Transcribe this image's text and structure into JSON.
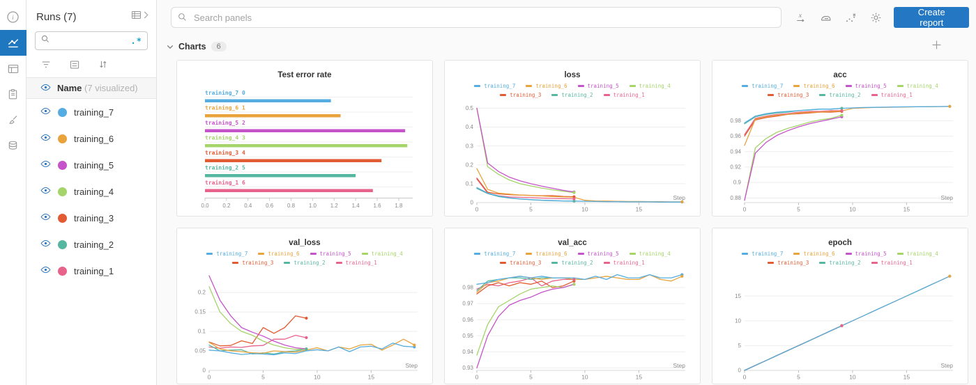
{
  "colors": {
    "training_7": "#54ace0",
    "training_6": "#e8a33d",
    "training_5": "#c553c9",
    "training_4": "#a5d46a",
    "training_3": "#e25b33",
    "training_2": "#55b7a0",
    "training_1": "#e8638c"
  },
  "accent": {
    "active_rail": "#1f77c0",
    "eye": "#2e78c2",
    "button": "#2477c2",
    "regex": "#17a6c6"
  },
  "rail": {
    "items": [
      "info",
      "charts",
      "table",
      "logs",
      "sweeps",
      "artifacts"
    ],
    "active_index": 1
  },
  "sidebar": {
    "title": "Runs (7)",
    "search_value": "",
    "regex_label": ".*",
    "name_label": "Name",
    "visualized_label": "(7 visualized)",
    "runs": [
      {
        "label": "training_7"
      },
      {
        "label": "training_6"
      },
      {
        "label": "training_5"
      },
      {
        "label": "training_4"
      },
      {
        "label": "training_3"
      },
      {
        "label": "training_2"
      },
      {
        "label": "training_1"
      }
    ]
  },
  "topbar": {
    "search_placeholder": "Search panels",
    "icons": [
      "x-axis",
      "smoothing",
      "outliers",
      "settings"
    ],
    "create_report_label": "Create report"
  },
  "section": {
    "title": "Charts",
    "count": "6"
  },
  "chart_data": [
    {
      "type": "bar",
      "title": "Test error rate",
      "orientation": "horizontal",
      "x_ticks": [
        0.0,
        0.2,
        0.4,
        0.6,
        0.8,
        1.0,
        1.2,
        1.4,
        1.6,
        1.8
      ],
      "x_domain_max": 1.93,
      "bars": [
        {
          "label": "training_7",
          "index": 0,
          "value": 1.17
        },
        {
          "label": "training_6",
          "index": 1,
          "value": 1.26
        },
        {
          "label": "training_5",
          "index": 2,
          "value": 1.86
        },
        {
          "label": "training_4",
          "index": 3,
          "value": 1.88
        },
        {
          "label": "training_3",
          "index": 4,
          "value": 1.64
        },
        {
          "label": "training_2",
          "index": 5,
          "value": 1.4
        },
        {
          "label": "training_1",
          "index": 6,
          "value": 1.56
        }
      ]
    },
    {
      "type": "line",
      "title": "loss",
      "xlabel": "Step",
      "x_ticks": [
        0,
        5,
        10,
        15
      ],
      "x_max": 19.3,
      "y_min": 0,
      "y_max": 0.52,
      "y_ticks": [
        0,
        0.1,
        0.2,
        0.3,
        0.4,
        0.5
      ],
      "series": [
        {
          "name": "training_7",
          "values": [
            0.08,
            0.05,
            0.035,
            0.025,
            0.02,
            0.016,
            0.013,
            0.011,
            0.009,
            0.008,
            0.007,
            0.006,
            0.005,
            0.005,
            0.004,
            0.004,
            0.004,
            0.003,
            0.003,
            0.003
          ]
        },
        {
          "name": "training_6",
          "values": [
            0.18,
            0.07,
            0.05,
            0.045,
            0.04,
            0.038,
            0.035,
            0.032,
            0.03,
            0.028,
            0.012,
            0.009,
            0.008,
            0.007,
            0.006,
            0.006,
            0.005,
            0.005,
            0.004,
            0.004
          ]
        },
        {
          "name": "training_5",
          "values": [
            0.5,
            0.21,
            0.165,
            0.135,
            0.115,
            0.1,
            0.087,
            0.076,
            0.065,
            0.056
          ]
        },
        {
          "name": "training_4",
          "values": [
            0.5,
            0.19,
            0.15,
            0.12,
            0.1,
            0.088,
            0.077,
            0.068,
            0.06,
            0.053
          ]
        },
        {
          "name": "training_3",
          "values": [
            0.13,
            0.055,
            0.046,
            0.042,
            0.04,
            0.038,
            0.036,
            0.037,
            0.033,
            0.031
          ]
        },
        {
          "name": "training_2",
          "values": [
            0.075,
            0.048,
            0.032,
            0.024,
            0.019,
            0.015,
            0.012,
            0.01,
            0.009,
            0.008
          ]
        },
        {
          "name": "training_1",
          "values": [
            0.125,
            0.05,
            0.036,
            0.03,
            0.028,
            0.026,
            0.024,
            0.022,
            0.021,
            0.02
          ]
        }
      ]
    },
    {
      "type": "line",
      "title": "acc",
      "xlabel": "Step",
      "x_ticks": [
        0,
        5,
        10,
        15
      ],
      "x_max": 19.3,
      "y_min": 0.874,
      "y_max": 1.001,
      "y_ticks": [
        0.88,
        0.9,
        0.92,
        0.94,
        0.96,
        0.98
      ],
      "series": [
        {
          "name": "training_7",
          "values": [
            0.977,
            0.986,
            0.989,
            0.991,
            0.992,
            0.993,
            0.994,
            0.995,
            0.995,
            0.996,
            0.9965,
            0.997,
            0.9972,
            0.9975,
            0.9977,
            0.9979,
            0.998,
            0.9981,
            0.9983,
            0.9985
          ]
        },
        {
          "name": "training_6",
          "values": [
            0.948,
            0.982,
            0.985,
            0.987,
            0.988,
            0.99,
            0.991,
            0.991,
            0.992,
            0.9925,
            0.996,
            0.9965,
            0.997,
            0.9972,
            0.9975,
            0.9977,
            0.9979,
            0.998,
            0.9982,
            0.9984
          ]
        },
        {
          "name": "training_5",
          "values": [
            0.877,
            0.938,
            0.952,
            0.961,
            0.967,
            0.972,
            0.976,
            0.979,
            0.982,
            0.985
          ]
        },
        {
          "name": "training_4",
          "values": [
            0.877,
            0.945,
            0.957,
            0.965,
            0.97,
            0.974,
            0.978,
            0.981,
            0.983,
            0.987
          ]
        },
        {
          "name": "training_3",
          "values": [
            0.96,
            0.981,
            0.984,
            0.986,
            0.988,
            0.989,
            0.99,
            0.991,
            0.991,
            0.992
          ]
        },
        {
          "name": "training_2",
          "values": [
            0.976,
            0.985,
            0.988,
            0.99,
            0.991,
            0.993,
            0.994,
            0.995,
            0.995,
            0.996
          ]
        },
        {
          "name": "training_1",
          "values": [
            0.962,
            0.983,
            0.986,
            0.988,
            0.989,
            0.991,
            0.992,
            0.992,
            0.993,
            0.993
          ]
        }
      ]
    },
    {
      "type": "line",
      "title": "val_loss",
      "xlabel": "Step",
      "x_ticks": [
        0,
        5,
        10,
        15
      ],
      "x_max": 19.3,
      "y_min": 0,
      "y_max": 0.252,
      "y_ticks": [
        0,
        0.05,
        0.1,
        0.15,
        0.2
      ],
      "series": [
        {
          "name": "training_7",
          "values": [
            0.052,
            0.05,
            0.045,
            0.041,
            0.043,
            0.042,
            0.04,
            0.045,
            0.043,
            0.05,
            0.053,
            0.05,
            0.06,
            0.048,
            0.06,
            0.062,
            0.055,
            0.07,
            0.062,
            0.06
          ]
        },
        {
          "name": "training_6",
          "values": [
            0.072,
            0.055,
            0.05,
            0.048,
            0.045,
            0.044,
            0.05,
            0.048,
            0.047,
            0.052,
            0.058,
            0.05,
            0.06,
            0.055,
            0.065,
            0.067,
            0.052,
            0.065,
            0.08,
            0.065
          ]
        },
        {
          "name": "training_5",
          "values": [
            0.243,
            0.18,
            0.14,
            0.11,
            0.098,
            0.088,
            0.075,
            0.065,
            0.058,
            0.055
          ]
        },
        {
          "name": "training_4",
          "values": [
            0.215,
            0.15,
            0.12,
            0.1,
            0.09,
            0.075,
            0.065,
            0.058,
            0.054,
            0.055
          ]
        },
        {
          "name": "training_3",
          "values": [
            0.073,
            0.063,
            0.064,
            0.076,
            0.069,
            0.11,
            0.095,
            0.11,
            0.14,
            0.134
          ]
        },
        {
          "name": "training_2",
          "values": [
            0.065,
            0.05,
            0.052,
            0.053,
            0.042,
            0.045,
            0.042,
            0.048,
            0.05,
            0.055
          ]
        },
        {
          "name": "training_1",
          "values": [
            0.06,
            0.057,
            0.06,
            0.059,
            0.063,
            0.064,
            0.08,
            0.08,
            0.09,
            0.084
          ]
        }
      ]
    },
    {
      "type": "line",
      "title": "val_acc",
      "xlabel": "Step",
      "x_ticks": [
        0,
        5,
        10,
        15
      ],
      "x_max": 19.3,
      "y_min": 0.9285,
      "y_max": 0.9895,
      "y_ticks": [
        0.93,
        0.94,
        0.95,
        0.96,
        0.97,
        0.98
      ],
      "series": [
        {
          "name": "training_7",
          "values": [
            0.982,
            0.983,
            0.985,
            0.986,
            0.987,
            0.986,
            0.987,
            0.986,
            0.986,
            0.986,
            0.985,
            0.987,
            0.985,
            0.988,
            0.986,
            0.986,
            0.988,
            0.986,
            0.986,
            0.988
          ]
        },
        {
          "name": "training_6",
          "values": [
            0.977,
            0.983,
            0.984,
            0.986,
            0.987,
            0.986,
            0.985,
            0.986,
            0.986,
            0.985,
            0.985,
            0.986,
            0.987,
            0.986,
            0.985,
            0.985,
            0.988,
            0.985,
            0.984,
            0.987
          ]
        },
        {
          "name": "training_5",
          "values": [
            0.93,
            0.95,
            0.962,
            0.969,
            0.972,
            0.974,
            0.977,
            0.979,
            0.98,
            0.982
          ]
        },
        {
          "name": "training_4",
          "values": [
            0.938,
            0.957,
            0.968,
            0.972,
            0.976,
            0.979,
            0.98,
            0.981,
            0.98,
            0.982
          ]
        },
        {
          "name": "training_3",
          "values": [
            0.976,
            0.981,
            0.983,
            0.981,
            0.983,
            0.982,
            0.984,
            0.98,
            0.981,
            0.984
          ]
        },
        {
          "name": "training_2",
          "values": [
            0.978,
            0.984,
            0.985,
            0.986,
            0.986,
            0.985,
            0.986,
            0.986,
            0.986,
            0.985
          ]
        },
        {
          "name": "training_1",
          "values": [
            0.979,
            0.982,
            0.981,
            0.983,
            0.984,
            0.986,
            0.981,
            0.984,
            0.985,
            0.985
          ]
        }
      ]
    },
    {
      "type": "line",
      "title": "epoch",
      "xlabel": "Step",
      "x_ticks": [
        0,
        5,
        10,
        15
      ],
      "x_max": 19.3,
      "y_min": 0,
      "y_max": 19.8,
      "y_ticks": [
        0,
        5,
        10,
        15
      ],
      "series": [
        {
          "name": "training_7",
          "values": [
            0,
            1,
            2,
            3,
            4,
            5,
            6,
            7,
            8,
            9,
            10,
            11,
            12,
            13,
            14,
            15,
            16,
            17,
            18,
            19
          ]
        },
        {
          "name": "training_6",
          "values": [
            0,
            1,
            2,
            3,
            4,
            5,
            6,
            7,
            8,
            9,
            10,
            11,
            12,
            13,
            14,
            15,
            16,
            17,
            18,
            19
          ]
        },
        {
          "name": "training_5",
          "values": [
            0,
            1,
            2,
            3,
            4,
            5,
            6,
            7,
            8,
            9
          ]
        },
        {
          "name": "training_4",
          "values": [
            0,
            1,
            2,
            3,
            4,
            5,
            6,
            7,
            8,
            9
          ]
        },
        {
          "name": "training_3",
          "values": [
            0,
            1,
            2,
            3,
            4,
            5,
            6,
            7,
            8,
            9
          ]
        },
        {
          "name": "training_2",
          "values": [
            0,
            1,
            2,
            3,
            4,
            5,
            6,
            7,
            8,
            9
          ]
        },
        {
          "name": "training_1",
          "values": [
            0,
            1,
            2,
            3,
            4,
            5,
            6,
            7,
            8,
            9
          ]
        }
      ]
    }
  ]
}
